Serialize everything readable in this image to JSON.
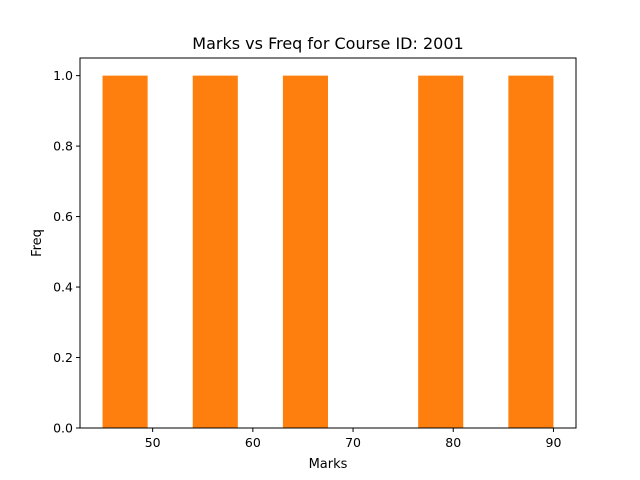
{
  "chart_data": {
    "type": "bar",
    "title": "Marks vs Freq for Course ID:  2001",
    "xlabel": "Marks",
    "ylabel": "Freq",
    "xlim": [
      42.75,
      92.25
    ],
    "ylim": [
      0,
      1.05
    ],
    "xticks": [
      50,
      60,
      70,
      80,
      90
    ],
    "yticks": [
      0.0,
      0.2,
      0.4,
      0.6,
      0.8,
      1.0
    ],
    "ytick_labels": [
      "0.0",
      "0.2",
      "0.4",
      "0.6",
      "0.8",
      "1.0"
    ],
    "bins": [
      {
        "start": 45,
        "end": 49.5,
        "value": 1
      },
      {
        "start": 49.5,
        "end": 54,
        "value": 0
      },
      {
        "start": 54,
        "end": 58.5,
        "value": 1
      },
      {
        "start": 58.5,
        "end": 63,
        "value": 0
      },
      {
        "start": 63,
        "end": 67.5,
        "value": 1
      },
      {
        "start": 67.5,
        "end": 72,
        "value": 0
      },
      {
        "start": 72,
        "end": 76.5,
        "value": 0
      },
      {
        "start": 76.5,
        "end": 81,
        "value": 1
      },
      {
        "start": 81,
        "end": 85.5,
        "value": 0
      },
      {
        "start": 85.5,
        "end": 90,
        "value": 1
      }
    ],
    "bar_color": "#ff7f0e",
    "grid": false,
    "legend": "none"
  }
}
